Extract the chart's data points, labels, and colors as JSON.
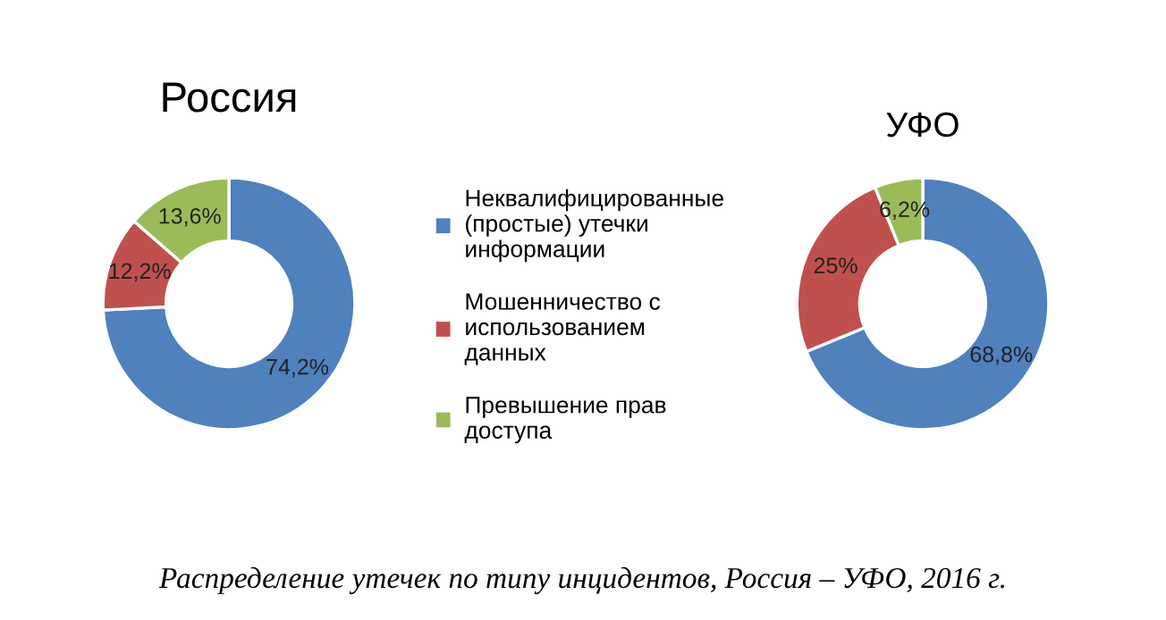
{
  "chart_data": [
    {
      "type": "donut",
      "title": "Россия",
      "categories": [
        "Неквалифицированные\n(простые) утечки\nинформации",
        "Мошенничество с\nиспользованием\nданных",
        "Превышение прав\nдоступа"
      ],
      "values": [
        74.2,
        12.2,
        13.6
      ],
      "colors": [
        "#4f81bd",
        "#c0504d",
        "#9bbb59"
      ],
      "value_labels": [
        "74,2%",
        "12,2%",
        "13,6%"
      ],
      "legend": "right",
      "annotations": [
        "Распределение утечек по типу инцидентов, Россия – УФО, 2016 г."
      ]
    },
    {
      "type": "donut",
      "title": "УФО",
      "categories": [
        null,
        null,
        null
      ],
      "values": [
        68.8,
        25,
        6.2
      ],
      "colors": [
        "#4f81bd",
        "#c0504d",
        "#9bbb59"
      ],
      "value_labels": [
        "68,8%",
        "25%",
        "6,2%"
      ]
    }
  ]
}
